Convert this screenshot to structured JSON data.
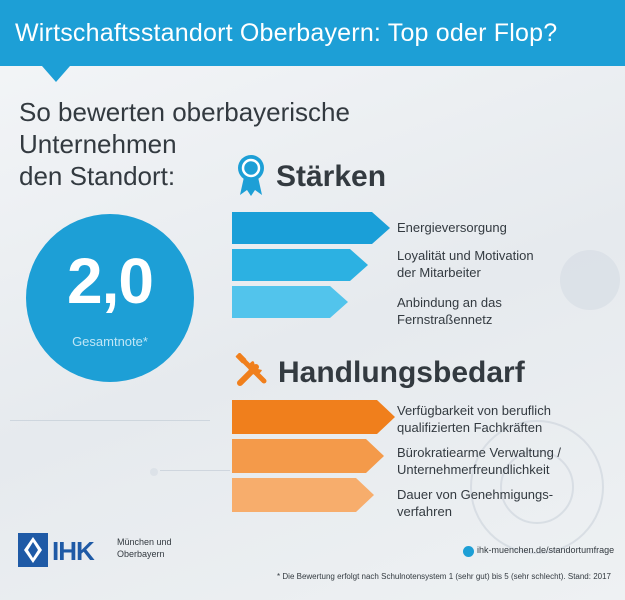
{
  "header": {
    "title": "Wirtschaftsstandort Oberbayern: Top oder Flop?"
  },
  "subtitle": {
    "line1": "So bewerten oberbayerische Unternehmen",
    "line2": "den Standort:"
  },
  "grade": {
    "value": "2,0",
    "label": "Gesamtnote*"
  },
  "strengths": {
    "title": "Stärken",
    "icon": "award-ribbon-icon",
    "items": [
      {
        "line1": "Energieversorgung",
        "line2": ""
      },
      {
        "line1": "Loyalität und Motivation",
        "line2": "der Mitarbeiter"
      },
      {
        "line1": "Anbindung an das",
        "line2": "Fernstraßennetz"
      }
    ]
  },
  "needs": {
    "title": "Handlungsbedarf",
    "icon": "tools-icon",
    "items": [
      {
        "line1": "Verfügbarkeit von beruflich",
        "line2": "qualifizierten Fachkräften"
      },
      {
        "line1": "Bürokratiearme Verwaltung /",
        "line2": "Unternehmerfreundlichkeit"
      },
      {
        "line1": "Dauer von Genehmigungs-",
        "line2": "verfahren"
      }
    ]
  },
  "footer": {
    "logo_text": "IHK",
    "logo_sub_line1": "München und",
    "logo_sub_line2": "Oberbayern",
    "link": "ihk-muenchen.de/standortumfrage",
    "footnote": "* Die Bewertung erfolgt nach Schulnotensystem 1 (sehr gut) bis 5 (sehr schlecht). Stand: 2017"
  },
  "colors": {
    "header": "#1d9fd6",
    "blue_arrows": [
      "#1a9fd8",
      "#2cb1e2",
      "#52c4ec"
    ],
    "orange_arrows": [
      "#f07f1c",
      "#f49a4a",
      "#f7ad6c"
    ],
    "text": "#333a40"
  }
}
